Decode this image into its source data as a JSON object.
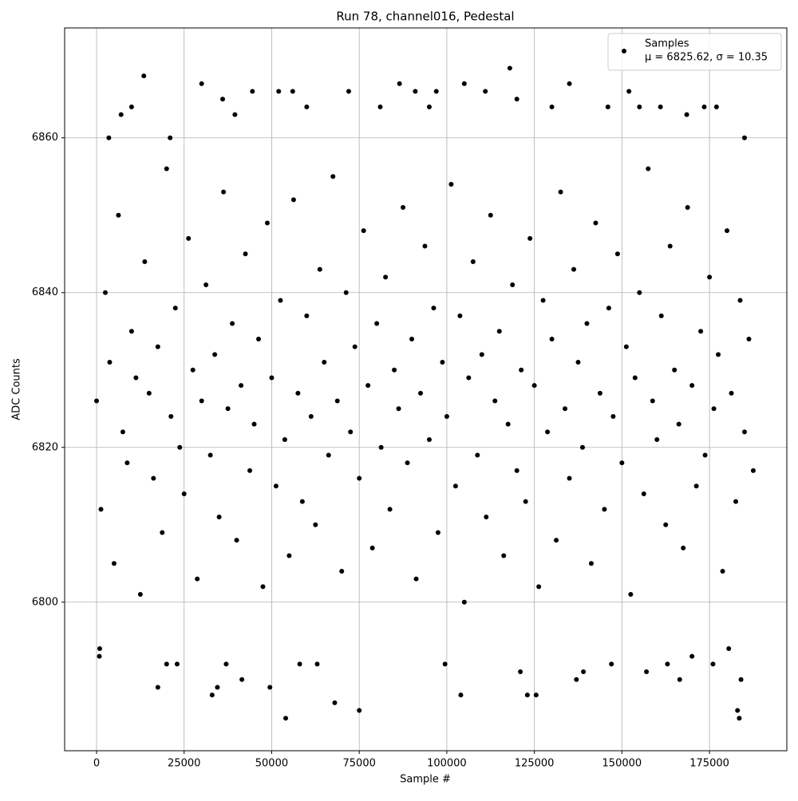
{
  "chart_data": {
    "type": "scatter",
    "title": "Run 78, channel016, Pedestal",
    "x_label": "Sample #",
    "y_label": "ADC Counts",
    "xlim": [
      -9114,
      197080
    ],
    "ylim": [
      6780.8,
      6874.2
    ],
    "xticks": [
      0,
      25000,
      50000,
      75000,
      100000,
      125000,
      150000,
      175000
    ],
    "yticks": [
      6800,
      6820,
      6840,
      6860
    ],
    "grid": true,
    "legend": "upper right",
    "legend_note": "μ = 6825.62, σ = 10.35",
    "x": [
      0,
      1250,
      2500,
      3750,
      5000,
      6250,
      7500,
      8750,
      10000,
      11250,
      12500,
      13750,
      15000,
      16250,
      17500,
      18750,
      20000,
      21250,
      22500,
      23750,
      25000,
      26250,
      27500,
      28750,
      30000,
      31250,
      32500,
      33750,
      35000,
      36250,
      37500,
      38750,
      40000,
      41250,
      42500,
      43750,
      45000,
      46250,
      47500,
      48750,
      50000,
      51250,
      52500,
      53750,
      55000,
      56250,
      57500,
      58750,
      60000,
      61250,
      62500,
      63750,
      65000,
      66250,
      67500,
      68750,
      70000,
      71250,
      72500,
      73750,
      75000,
      76250,
      77500,
      78750,
      80000,
      81250,
      82500,
      83750,
      85000,
      86250,
      87500,
      88750,
      90000,
      91250,
      92500,
      93750,
      95000,
      96250,
      97500,
      98750,
      100000,
      101250,
      102500,
      103750,
      105000,
      106250,
      107500,
      108750,
      110000,
      111250,
      112500,
      113750,
      115000,
      116250,
      117500,
      118750,
      120000,
      121250,
      122500,
      123750,
      125000,
      126250,
      127500,
      128750,
      130000,
      131250,
      132500,
      133750,
      135000,
      136250,
      137500,
      138750,
      140000,
      141250,
      142500,
      143750,
      145000,
      146250,
      147500,
      148750,
      150000,
      151250,
      152500,
      153750,
      155000,
      156250,
      157500,
      158750,
      160000,
      161250,
      162500,
      163750,
      165000,
      166250,
      167500,
      168750,
      170000,
      171250,
      172500,
      173750,
      175000,
      176250,
      177500,
      178750,
      180000,
      181250,
      182500,
      183750,
      185000,
      186250,
      187500,
      13500,
      30000,
      118000,
      86500,
      105000,
      135000,
      54000,
      75000,
      68000,
      183500,
      183000,
      17500,
      33000,
      34500,
      41500,
      49500,
      104000,
      123000,
      125500,
      137000,
      166500,
      184000,
      900,
      800,
      10000,
      36000,
      44500,
      52000,
      56000,
      72000,
      91000,
      97000,
      111000,
      152000,
      177000,
      173500,
      161000,
      3500,
      7000,
      39500,
      60000,
      81000,
      95000,
      120000,
      130000,
      146000,
      155000,
      168500,
      185000,
      21000,
      20000,
      23000,
      37000,
      58000,
      63000,
      99500,
      121000,
      139000,
      147000,
      157000,
      163000,
      176000,
      180500,
      170000
    ],
    "series": [
      {
        "name": "Samples",
        "color": "#000000",
        "values": [
          6826,
          6812,
          6840,
          6831,
          6805,
          6850,
          6822,
          6818,
          6835,
          6829,
          6801,
          6844,
          6827,
          6816,
          6833,
          6809,
          6856,
          6824,
          6838,
          6820,
          6814,
          6847,
          6830,
          6803,
          6826,
          6841,
          6819,
          6832,
          6811,
          6853,
          6825,
          6836,
          6808,
          6828,
          6845,
          6817,
          6823,
          6834,
          6802,
          6849,
          6829,
          6815,
          6839,
          6821,
          6806,
          6852,
          6827,
          6813,
          6837,
          6824,
          6810,
          6843,
          6831,
          6819,
          6855,
          6826,
          6804,
          6840,
          6822,
          6833,
          6816,
          6848,
          6828,
          6807,
          6836,
          6820,
          6842,
          6812,
          6830,
          6825,
          6851,
          6818,
          6834,
          6803,
          6827,
          6846,
          6821,
          6838,
          6809,
          6831,
          6824,
          6854,
          6815,
          6837,
          6800,
          6829,
          6844,
          6819,
          6832,
          6811,
          6850,
          6826,
          6835,
          6806,
          6823,
          6841,
          6817,
          6830,
          6813,
          6847,
          6828,
          6802,
          6839,
          6822,
          6834,
          6808,
          6853,
          6825,
          6816,
          6843,
          6831,
          6820,
          6836,
          6805,
          6849,
          6827,
          6812,
          6838,
          6824,
          6845,
          6818,
          6833,
          6801,
          6829,
          6840,
          6814,
          6856,
          6826,
          6821,
          6837,
          6810,
          6846,
          6830,
          6823,
          6807,
          6851,
          6828,
          6815,
          6835,
          6819,
          6842,
          6825,
          6832,
          6804,
          6848,
          6827,
          6813,
          6839,
          6822,
          6834,
          6817,
          6868,
          6867,
          6869,
          6867,
          6867,
          6867,
          6785,
          6786,
          6787,
          6785,
          6786,
          6789,
          6788,
          6789,
          6790,
          6789,
          6788,
          6788,
          6788,
          6790,
          6790,
          6790,
          6794,
          6793,
          6864,
          6865,
          6866,
          6866,
          6866,
          6866,
          6866,
          6866,
          6866,
          6866,
          6864,
          6864,
          6864,
          6860,
          6863,
          6863,
          6864,
          6864,
          6864,
          6865,
          6864,
          6864,
          6864,
          6863,
          6860,
          6860,
          6792,
          6792,
          6792,
          6792,
          6792,
          6792,
          6791,
          6791,
          6792,
          6791,
          6792,
          6792,
          6794,
          6793
        ]
      }
    ]
  }
}
